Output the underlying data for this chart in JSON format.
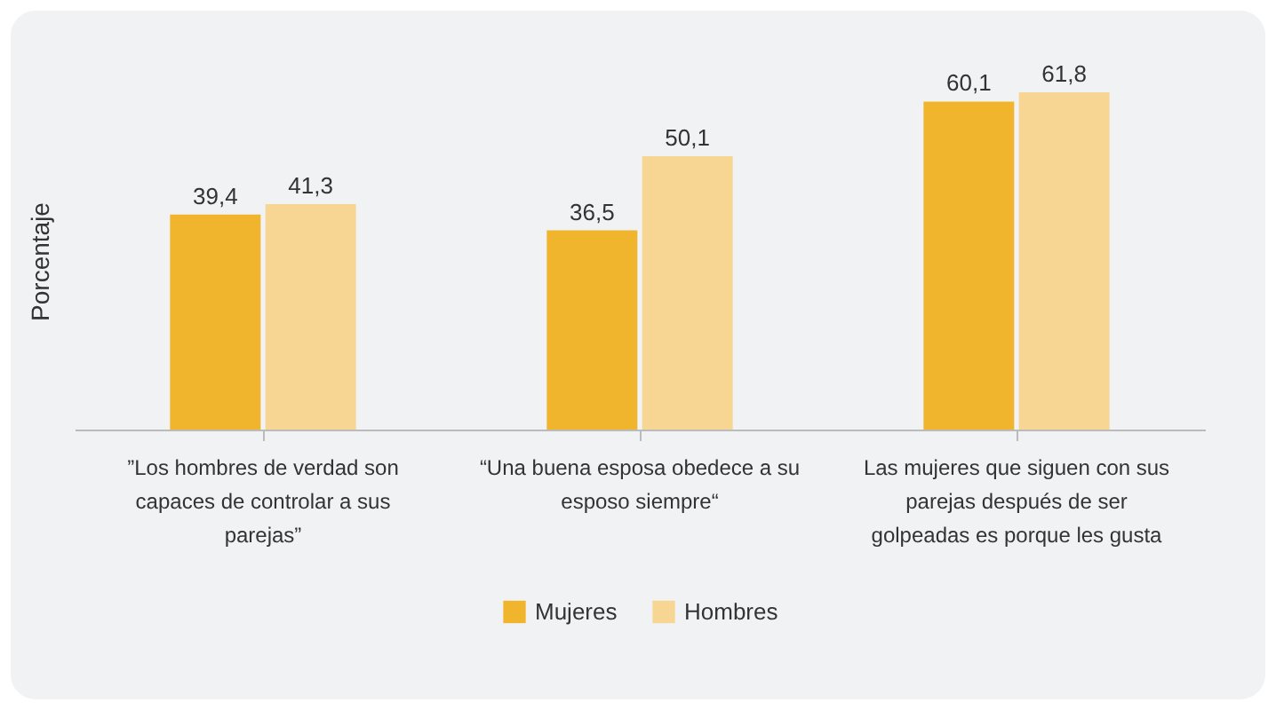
{
  "chart_data": {
    "type": "bar",
    "ylabel": "Porcentaje",
    "categories": [
      "”Los hombres de verdad son capaces de controlar a sus parejas”",
      "“Una buena esposa obedece a su esposo siempre“",
      "Las mujeres que siguen con sus parejas después de ser golpeadas es porque les gusta"
    ],
    "series": [
      {
        "name": "Mujeres",
        "color": "#f0b52d",
        "values": [
          39.4,
          36.5,
          60.1
        ],
        "value_labels": [
          "39,4",
          "36,5",
          "60,1"
        ]
      },
      {
        "name": "Hombres",
        "color": "#f7d592",
        "values": [
          41.3,
          50.1,
          61.8
        ],
        "value_labels": [
          "41,3",
          "50,1",
          "61,8"
        ]
      }
    ],
    "legend": "bottom",
    "tick_labels": "x"
  }
}
